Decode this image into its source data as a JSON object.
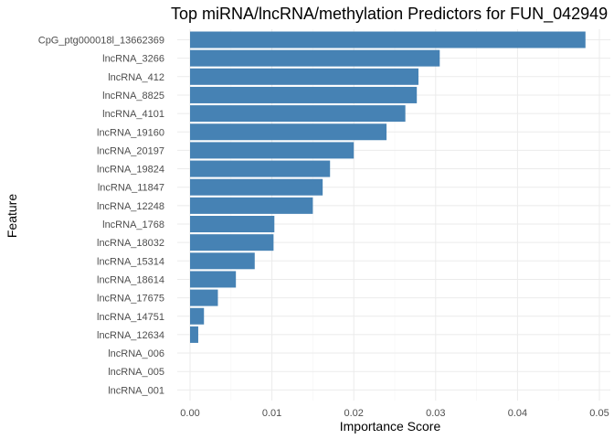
{
  "chart_data": {
    "type": "bar",
    "orientation": "horizontal",
    "title": "Top miRNA/lncRNA/methylation Predictors for FUN_042949",
    "xlabel": "Importance Score",
    "ylabel": "Feature",
    "xlim": [
      0,
      0.05
    ],
    "xticks": [
      0.0,
      0.01,
      0.02,
      0.03,
      0.04,
      0.05
    ],
    "xtick_labels": [
      "0.00",
      "0.01",
      "0.02",
      "0.03",
      "0.04",
      "0.05"
    ],
    "grid": true,
    "bar_color": "#4682B4",
    "categories": [
      "CpG_ptg000018l_13662369",
      "lncRNA_3266",
      "lncRNA_412",
      "lncRNA_8825",
      "lncRNA_4101",
      "lncRNA_19160",
      "lncRNA_20197",
      "lncRNA_19824",
      "lncRNA_11847",
      "lncRNA_12248",
      "lncRNA_1768",
      "lncRNA_18032",
      "lncRNA_15314",
      "lncRNA_18614",
      "lncRNA_17675",
      "lncRNA_14751",
      "lncRNA_12634",
      "lncRNA_006",
      "lncRNA_005",
      "lncRNA_001"
    ],
    "values": [
      0.0483,
      0.0305,
      0.0279,
      0.0277,
      0.0263,
      0.024,
      0.02,
      0.0171,
      0.0162,
      0.015,
      0.0103,
      0.0102,
      0.0079,
      0.0056,
      0.0034,
      0.0017,
      0.001,
      0.0,
      0.0,
      0.0
    ]
  }
}
